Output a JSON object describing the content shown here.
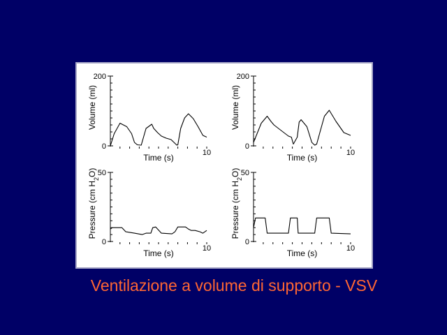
{
  "slide": {
    "title": "Ventilazione a volume di supporto - VSV",
    "background_color": "#000066",
    "title_color": "#ff6633"
  },
  "chart_data": [
    {
      "type": "line",
      "id": "volume-left",
      "xlabel": "Time (s)",
      "ylabel": "Volume (ml)",
      "xlim": [
        0,
        10
      ],
      "ylim": [
        0,
        200
      ],
      "y_ticks": [
        0,
        200
      ],
      "x_ticks": [
        10
      ],
      "grid": false,
      "series": [
        {
          "x": [
            0,
            0.4,
            1.0,
            1.7,
            2.2,
            2.5,
            2.8,
            3.2,
            3.7,
            4.3,
            4.5,
            4.9,
            5.3,
            5.8,
            6.3,
            6.9,
            7.0,
            7.3,
            7.7,
            8.1,
            8.6,
            9.1,
            9.6,
            10
          ],
          "y": [
            0,
            35,
            65,
            55,
            35,
            10,
            3,
            2,
            50,
            62,
            50,
            38,
            28,
            22,
            18,
            2,
            3,
            50,
            80,
            92,
            78,
            55,
            30,
            25
          ]
        }
      ]
    },
    {
      "type": "line",
      "id": "volume-right",
      "xlabel": "Time (s)",
      "ylabel": "Volume (ml)",
      "xlim": [
        0,
        10
      ],
      "ylim": [
        0,
        200
      ],
      "y_ticks": [
        0,
        200
      ],
      "x_ticks": [
        10
      ],
      "grid": false,
      "series": [
        {
          "x": [
            0,
            0.8,
            1.4,
            1.8,
            2.1,
            2.8,
            3.6,
            3.9,
            4.1,
            4.5,
            4.7,
            4.9,
            5.5,
            6.0,
            6.3,
            6.5,
            6.9,
            7.3,
            7.8,
            8.5,
            9.3,
            10
          ],
          "y": [
            10,
            65,
            85,
            70,
            60,
            45,
            28,
            25,
            5,
            25,
            68,
            75,
            55,
            10,
            2,
            5,
            45,
            85,
            102,
            70,
            38,
            30
          ]
        }
      ]
    },
    {
      "type": "line",
      "id": "pressure-left",
      "xlabel": "Time (s)",
      "ylabel": "Pressure (cm H2O)",
      "xlim": [
        0,
        10
      ],
      "ylim": [
        0,
        50
      ],
      "y_ticks": [
        0,
        50
      ],
      "x_ticks": [
        10
      ],
      "grid": false,
      "series": [
        {
          "x": [
            0,
            0.2,
            1.2,
            1.6,
            2.5,
            3.3,
            3.7,
            4.2,
            4.4,
            4.7,
            5.3,
            6.4,
            6.7,
            7.0,
            7.8,
            8.1,
            8.4,
            8.8,
            9.3,
            9.6,
            10
          ],
          "y": [
            9,
            10,
            10,
            7,
            6,
            5,
            6,
            6,
            10,
            10.5,
            6,
            5.5,
            7,
            10.5,
            10.5,
            9,
            8,
            8,
            7,
            6,
            8
          ]
        }
      ]
    },
    {
      "type": "line",
      "id": "pressure-right",
      "xlabel": "Time (s)",
      "ylabel": "Pressure (cm H2O)",
      "xlim": [
        0,
        10
      ],
      "ylim": [
        0,
        50
      ],
      "y_ticks": [
        0,
        50
      ],
      "x_ticks": [
        10
      ],
      "grid": false,
      "series": [
        {
          "x": [
            0,
            0.2,
            1.2,
            1.4,
            3.6,
            3.8,
            4.5,
            4.6,
            6.3,
            6.5,
            7.8,
            8.0,
            10
          ],
          "y": [
            10,
            17,
            17,
            6,
            6,
            17,
            17,
            6,
            6,
            17,
            17,
            6,
            5.5
          ]
        }
      ]
    }
  ]
}
